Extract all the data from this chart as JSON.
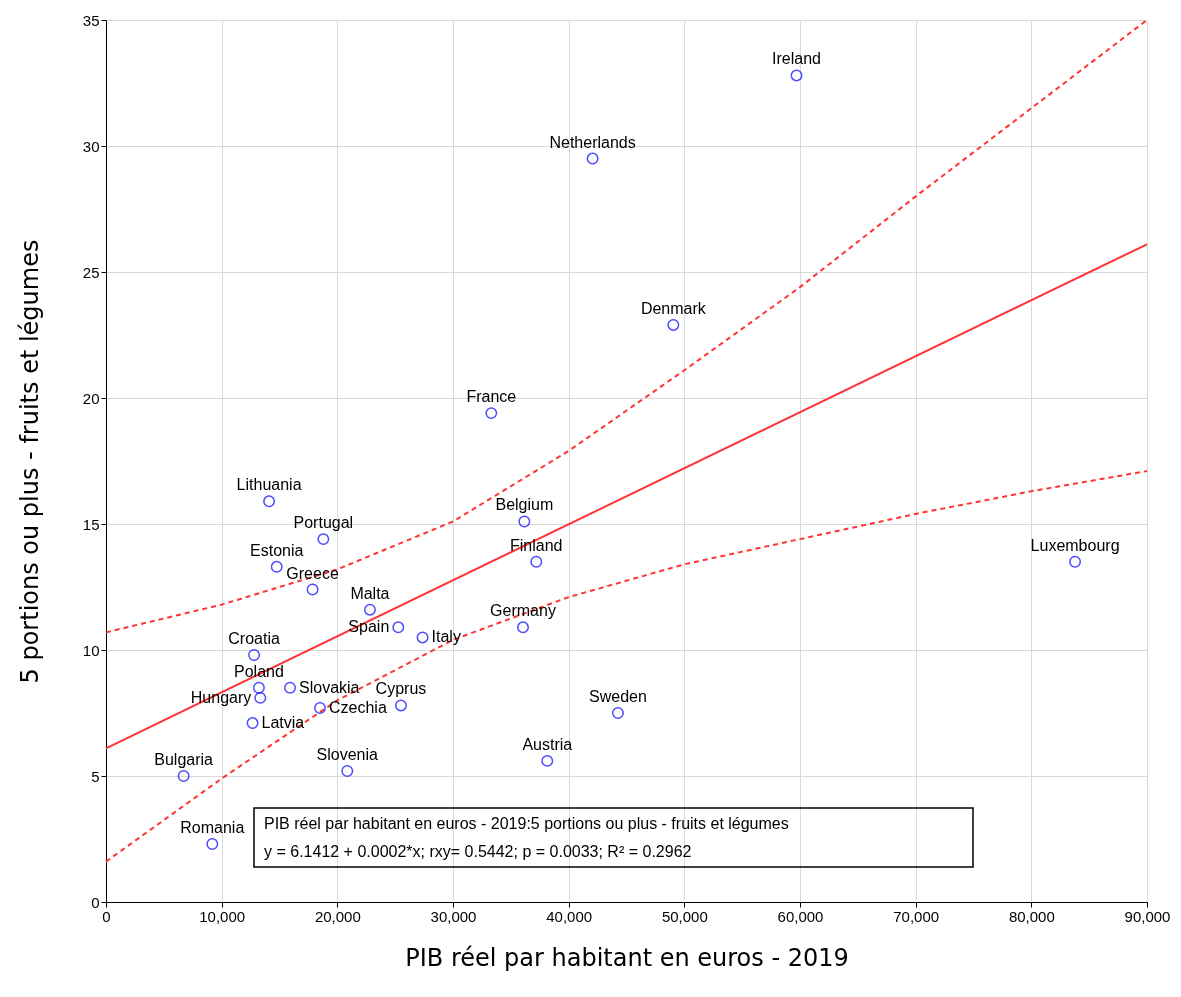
{
  "chart_data": {
    "type": "scatter",
    "xlabel": "PIB réel par habitant en euros - 2019",
    "ylabel": "5 portions ou plus - fruits et légumes",
    "xlim": [
      0,
      90000
    ],
    "xticks": [
      0,
      {
        "value": 10000,
        "label": "10,000"
      },
      {
        "value": 20000,
        "label": "20,000"
      },
      {
        "value": 30000,
        "label": "30,000"
      },
      {
        "value": 40000,
        "label": "40,000"
      },
      {
        "value": 50000,
        "label": "50,000"
      },
      {
        "value": 60000,
        "label": "60,000"
      },
      {
        "value": 70000,
        "label": "70,000"
      },
      {
        "value": 80000,
        "label": "80,000"
      },
      {
        "value": 90000,
        "label": "90,000"
      }
    ],
    "ylim": [
      0,
      35
    ],
    "yticks": [
      0,
      5,
      10,
      15,
      20,
      25,
      30,
      35
    ],
    "grid": true,
    "series": [
      {
        "type": "scatter",
        "marker": "circle",
        "color": "#0000ff",
        "x": [
          59700,
          42070,
          49050,
          33310,
          14100,
          18790,
          14760,
          17860,
          22820,
          25270,
          27370,
          12800,
          13220,
          13340,
          15910,
          18500,
          12670,
          25500,
          20860,
          6710,
          9190,
          36170,
          37200,
          36050,
          38150,
          44260,
          83780
        ],
        "values": [
          32.8,
          29.5,
          22.9,
          19.4,
          15.9,
          14.4,
          13.3,
          12.4,
          11.6,
          10.9,
          10.5,
          9.8,
          8.5,
          8.1,
          8.5,
          7.7,
          7.1,
          7.8,
          5.2,
          5.0,
          2.3,
          15.1,
          13.5,
          10.9,
          5.6,
          7.5,
          13.5
        ]
      },
      {
        "type": "line",
        "marker": "none",
        "line_style": "solid",
        "color": "#ff3333",
        "x": [
          0,
          90000
        ],
        "values": [
          6.1,
          26.1
        ]
      },
      {
        "type": "line",
        "marker": "none",
        "line_style": "dashed",
        "color": "#ff3333",
        "x": [
          0,
          10000,
          20000,
          30000,
          40000,
          50000,
          60000,
          70000,
          80000,
          90000
        ],
        "values": [
          10.7,
          11.8,
          13.2,
          15.1,
          17.9,
          21.1,
          24.4,
          28.0,
          31.5,
          35.0
        ]
      },
      {
        "type": "line",
        "marker": "none",
        "line_style": "dashed",
        "color": "#ff3333",
        "x": [
          0,
          10000,
          20000,
          30000,
          40000,
          50000,
          60000,
          70000,
          80000,
          90000
        ],
        "values": [
          1.6,
          4.9,
          8.0,
          10.4,
          12.1,
          13.4,
          14.4,
          15.4,
          16.3,
          17.1
        ]
      }
    ],
    "annotations": [
      {
        "text": "Ireland",
        "x": 59700,
        "y": 32.8
      },
      {
        "text": "Netherlands",
        "x": 42070,
        "y": 29.5
      },
      {
        "text": "Denmark",
        "x": 49050,
        "y": 22.9
      },
      {
        "text": "France",
        "x": 33310,
        "y": 19.4
      },
      {
        "text": "Lithuania",
        "x": 14100,
        "y": 15.9
      },
      {
        "text": "Portugal",
        "x": 18790,
        "y": 14.4
      },
      {
        "text": "Estonia",
        "x": 14760,
        "y": 13.3
      },
      {
        "text": "Greece",
        "x": 17860,
        "y": 12.4
      },
      {
        "text": "Malta",
        "x": 22820,
        "y": 11.6
      },
      {
        "text": "Spain",
        "x": 25270,
        "y": 10.9
      },
      {
        "text": "Italy",
        "x": 27370,
        "y": 10.5
      },
      {
        "text": "Croatia",
        "x": 12800,
        "y": 9.8
      },
      {
        "text": "Poland",
        "x": 13220,
        "y": 8.5
      },
      {
        "text": "Hungary",
        "x": 13340,
        "y": 8.1
      },
      {
        "text": "Slovakia",
        "x": 15910,
        "y": 8.5
      },
      {
        "text": "Czechia",
        "x": 18500,
        "y": 7.7
      },
      {
        "text": "Latvia",
        "x": 12670,
        "y": 7.1
      },
      {
        "text": "Cyprus",
        "x": 25500,
        "y": 7.8
      },
      {
        "text": "Slovenia",
        "x": 20860,
        "y": 5.2
      },
      {
        "text": "Bulgaria",
        "x": 6710,
        "y": 5.0
      },
      {
        "text": "Romania",
        "x": 9190,
        "y": 2.3
      },
      {
        "text": "Belgium",
        "x": 36170,
        "y": 15.1
      },
      {
        "text": "Finland",
        "x": 37200,
        "y": 13.5
      },
      {
        "text": "Germany",
        "x": 36050,
        "y": 10.9
      },
      {
        "text": "Austria",
        "x": 38150,
        "y": 5.6
      },
      {
        "text": "Sweden",
        "x": 44260,
        "y": 7.5
      },
      {
        "text": "Luxembourg",
        "x": 83780,
        "y": 13.5
      },
      "PIB réel par habitant en euros - 2019:5 portions ou plus - fruits et légumes",
      "y = 6.1412 + 0.0002*x;  rxy= 0.5442; p = 0.0033; R² = 0.2962"
    ]
  }
}
